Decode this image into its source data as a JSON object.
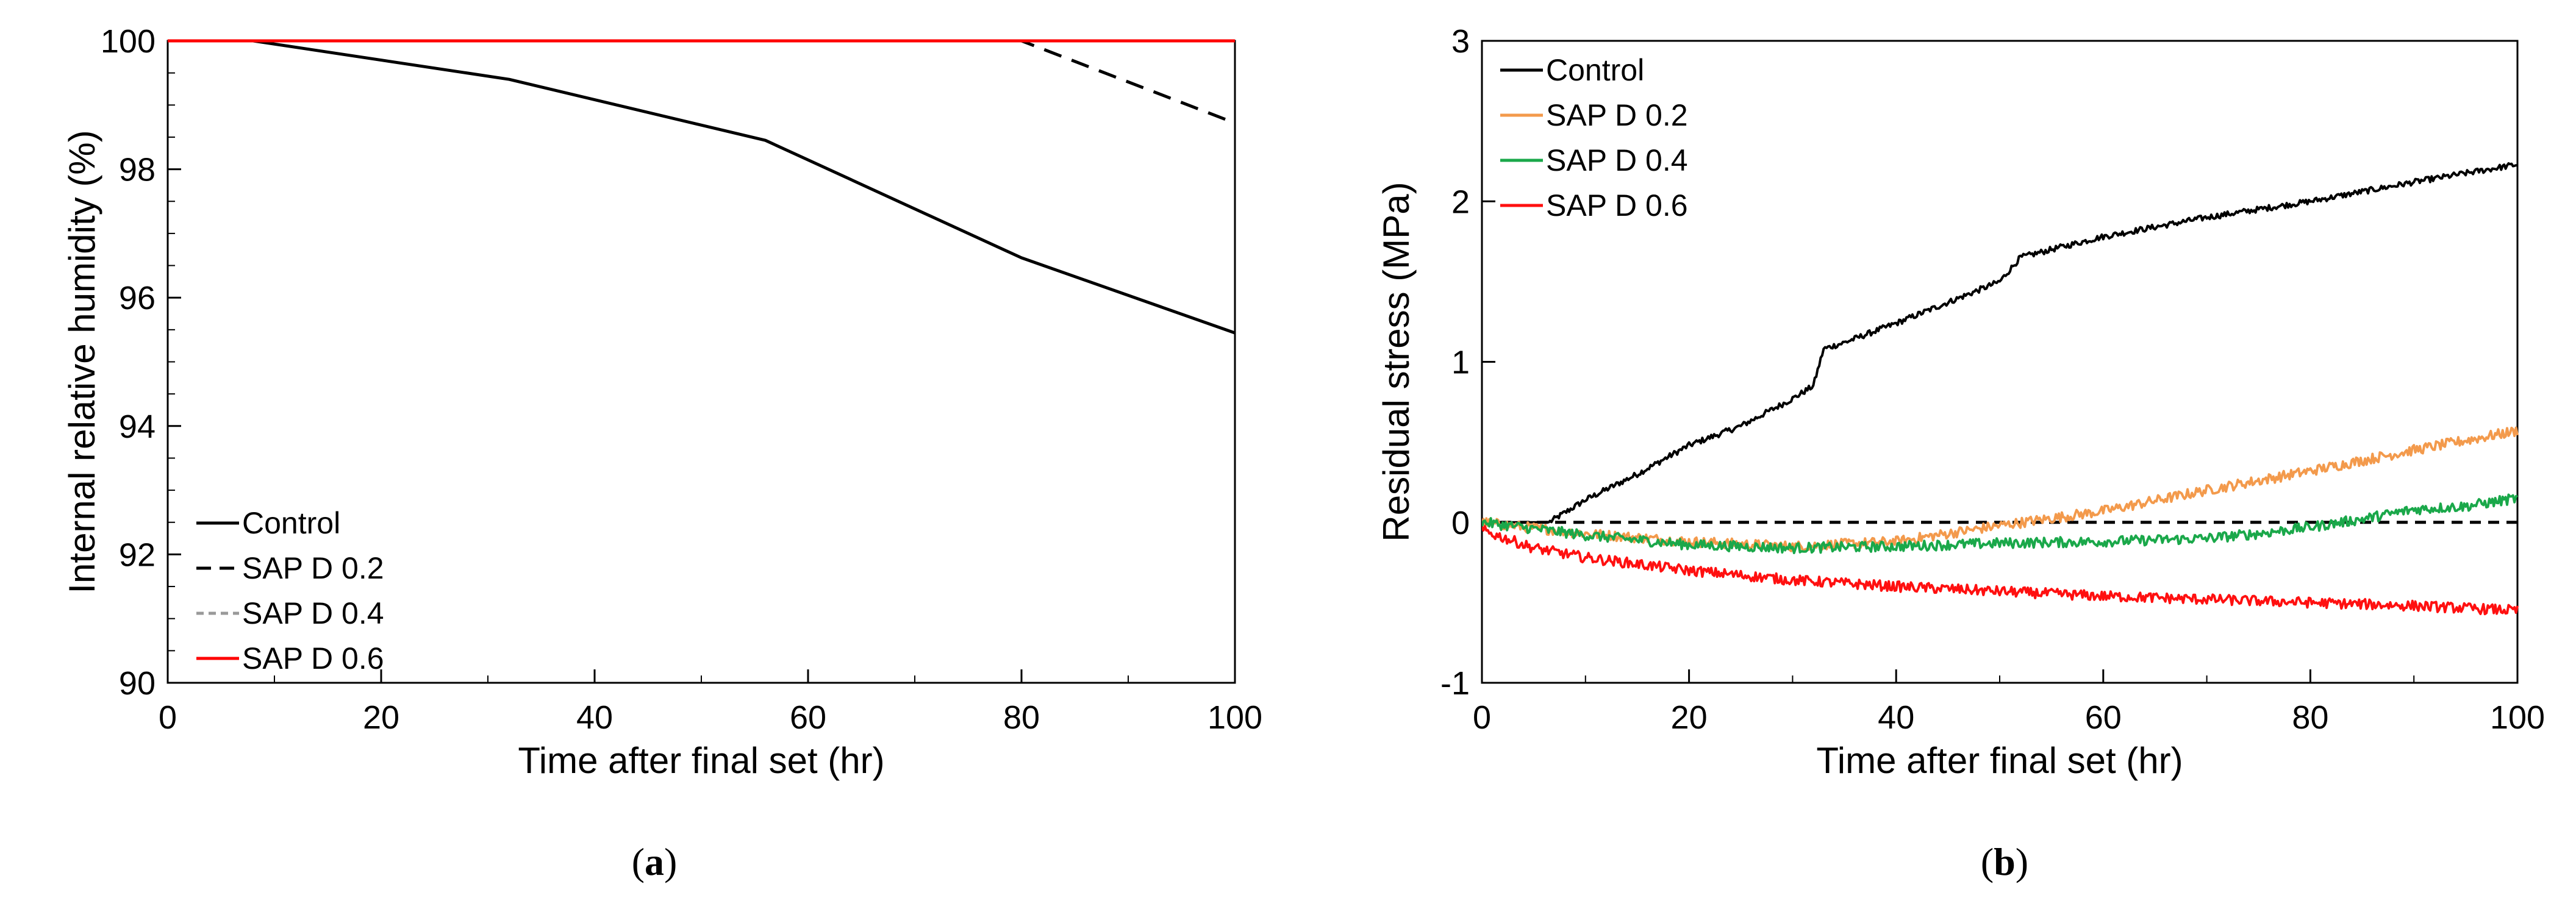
{
  "chart_data": [
    {
      "type": "line",
      "panel_label": "(a)",
      "panel_letter": "a",
      "title": "",
      "xlabel": "Time after final set (hr)",
      "ylabel": "Internal relative humidity (%)",
      "xlim": [
        0,
        100
      ],
      "ylim": [
        90,
        100
      ],
      "xticks": [
        0,
        20,
        40,
        60,
        80,
        100
      ],
      "yticks": [
        90,
        92,
        94,
        96,
        98,
        100
      ],
      "grid": false,
      "legend_position": "bottom-left",
      "series": [
        {
          "name": "Control",
          "color": "#000000",
          "dash": "solid",
          "x": [
            0,
            8,
            32,
            56,
            80,
            100
          ],
          "y": [
            100,
            100,
            99.4,
            98.45,
            96.62,
            95.45
          ]
        },
        {
          "name": "SAP D 0.2",
          "color": "#000000",
          "dash": "dashed",
          "x": [
            0,
            80,
            100
          ],
          "y": [
            100,
            100,
            98.72
          ]
        },
        {
          "name": "SAP D 0.4",
          "color": "#999999",
          "dash": "dashed",
          "x": [
            0,
            100
          ],
          "y": [
            100,
            100
          ]
        },
        {
          "name": "SAP D 0.6",
          "color": "#ff0000",
          "dash": "solid",
          "x": [
            0,
            100
          ],
          "y": [
            100,
            100
          ]
        }
      ]
    },
    {
      "type": "line",
      "panel_label": "(b)",
      "panel_letter": "b",
      "title": "",
      "xlabel": "Time after final set (hr)",
      "ylabel": "Residual stress (MPa)",
      "xlim": [
        0,
        100
      ],
      "ylim": [
        -1,
        3
      ],
      "xticks": [
        0,
        20,
        40,
        60,
        80,
        100
      ],
      "yticks": [
        -1,
        0,
        1,
        2,
        3
      ],
      "grid": false,
      "legend_position": "top-left",
      "reference_line": {
        "y": 0,
        "color": "#000000",
        "dash": "dashed"
      },
      "series": [
        {
          "name": "Control",
          "color": "#000000",
          "x": [
            0,
            6.5,
            10,
            15,
            20,
            25,
            30,
            32,
            33,
            35,
            40,
            45,
            50,
            52,
            55,
            60,
            70,
            80,
            90,
            100
          ],
          "y": [
            0,
            0,
            0.14,
            0.3,
            0.48,
            0.6,
            0.77,
            0.85,
            1.08,
            1.12,
            1.24,
            1.37,
            1.5,
            1.65,
            1.7,
            1.78,
            1.9,
            2.0,
            2.12,
            2.23
          ]
        },
        {
          "name": "SAP D 0.2",
          "color": "#f39a4c",
          "x": [
            0,
            10,
            20,
            30,
            40,
            50,
            60,
            70,
            80,
            90,
            100
          ],
          "y": [
            0,
            -0.07,
            -0.12,
            -0.15,
            -0.12,
            -0.02,
            0.07,
            0.2,
            0.32,
            0.45,
            0.57
          ]
        },
        {
          "name": "SAP D 0.4",
          "color": "#1aa84a",
          "x": [
            0,
            10,
            20,
            30,
            40,
            50,
            60,
            70,
            75,
            80,
            85,
            90,
            95,
            100
          ],
          "y": [
            0,
            -0.08,
            -0.14,
            -0.16,
            -0.15,
            -0.13,
            -0.12,
            -0.1,
            -0.07,
            -0.03,
            0.02,
            0.08,
            0.1,
            0.15
          ]
        },
        {
          "name": "SAP D 0.6",
          "color": "#ff1010",
          "x": [
            0,
            5,
            10,
            20,
            30,
            40,
            50,
            60,
            70,
            80,
            90,
            100
          ],
          "y": [
            -0.05,
            -0.16,
            -0.22,
            -0.3,
            -0.36,
            -0.4,
            -0.43,
            -0.46,
            -0.48,
            -0.5,
            -0.52,
            -0.55
          ]
        }
      ]
    }
  ]
}
